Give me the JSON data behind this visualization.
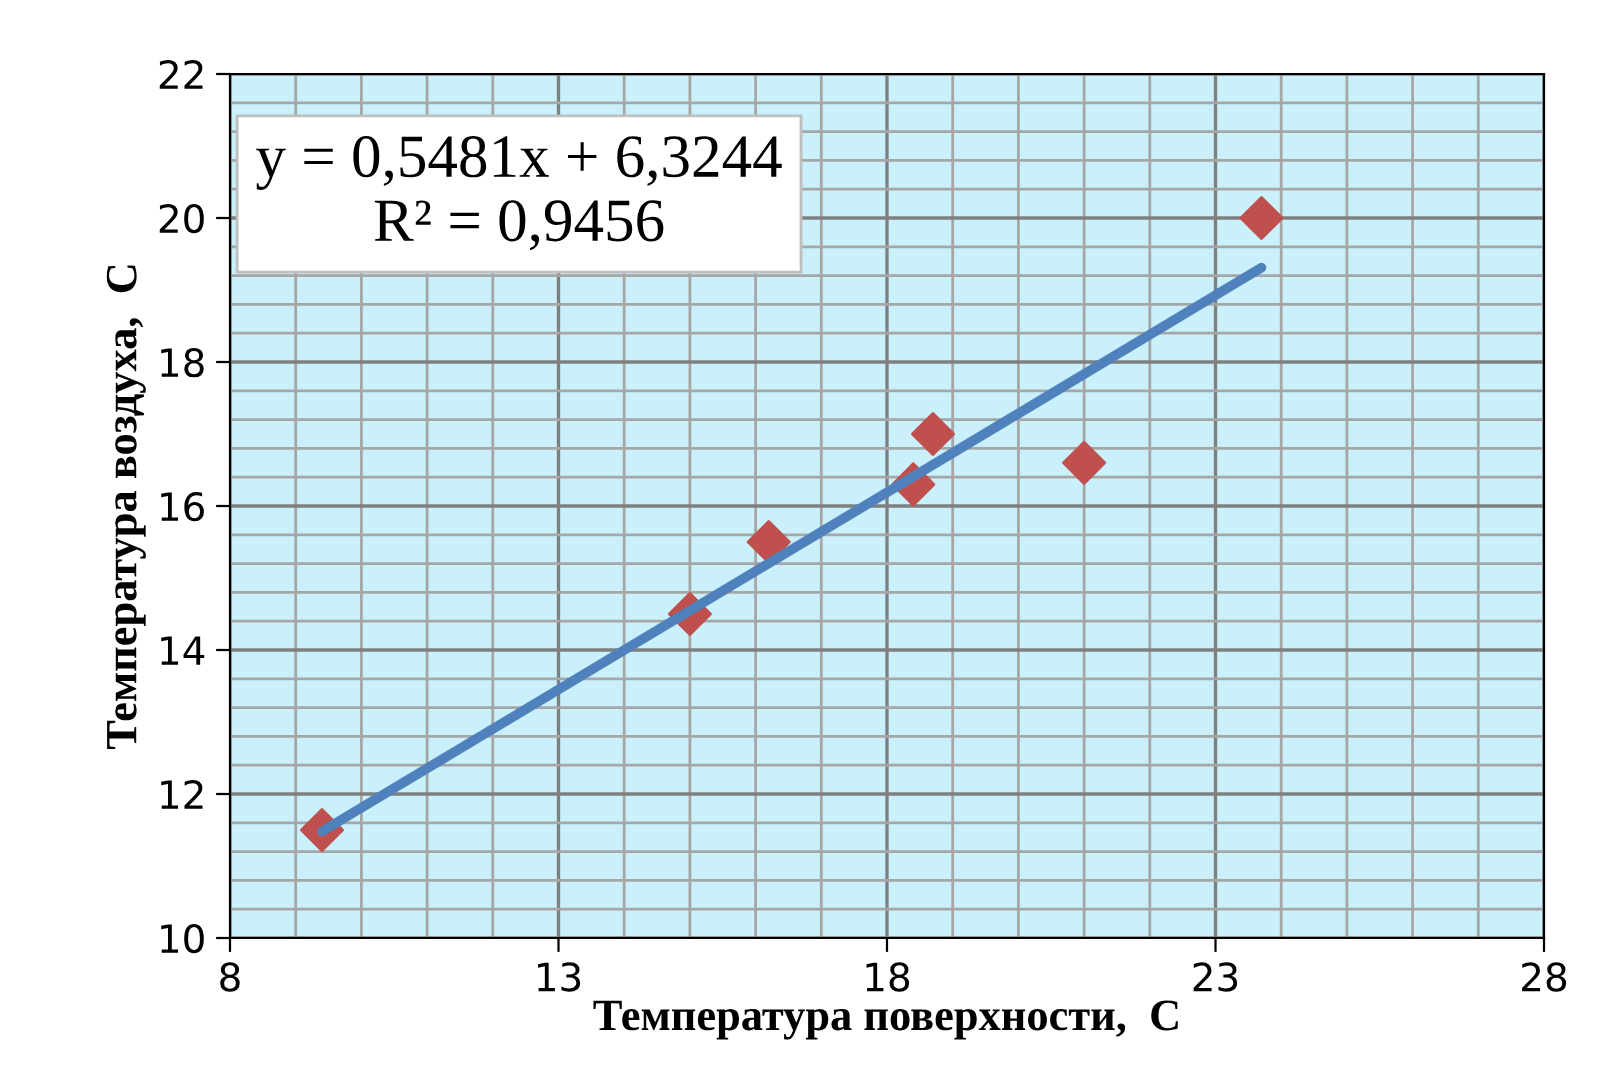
{
  "chart_data": {
    "type": "scatter",
    "xlabel": "Температура поверхности,  С",
    "ylabel": "Температура воздуха,  С",
    "series": [
      {
        "color": "#c0504d",
        "marker": "diamond",
        "x": [
          9.4,
          15.0,
          16.2,
          18.4,
          18.7,
          21.0,
          23.7
        ],
        "values": [
          11.5,
          14.5,
          15.5,
          16.3,
          17.0,
          16.6,
          20.0
        ]
      },
      {
        "type": "line",
        "color": "#4f81bd",
        "marker": "none",
        "x": [
          9.4,
          23.7
        ],
        "values": [
          11.48,
          19.31
        ]
      }
    ],
    "xlim": [
      8,
      28
    ],
    "xticks": [
      8,
      13,
      18,
      23,
      28
    ],
    "ylim": [
      10,
      22
    ],
    "yticks": [
      10,
      12,
      14,
      16,
      18,
      20,
      22
    ],
    "grid": true,
    "legend": false,
    "annotations": [
      "y = 0,5481x + 6,3244\nR² = 0,9456"
    ]
  }
}
